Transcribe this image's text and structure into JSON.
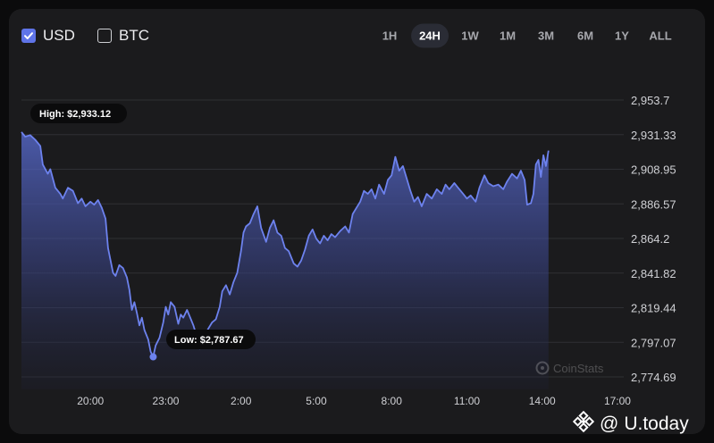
{
  "currency_toggle": [
    {
      "label": "USD",
      "checked": true
    },
    {
      "label": "BTC",
      "checked": false
    }
  ],
  "timeframes": [
    {
      "label": "1H",
      "selected": false
    },
    {
      "label": "24H",
      "selected": true
    },
    {
      "label": "1W",
      "selected": false
    },
    {
      "label": "1M",
      "selected": false
    },
    {
      "label": "3M",
      "selected": false
    },
    {
      "label": "6M",
      "selected": false
    },
    {
      "label": "1Y",
      "selected": false
    },
    {
      "label": "ALL",
      "selected": false
    }
  ],
  "colors": {
    "line": "#6d82ee",
    "accent": "#5f74e8",
    "background": "#1b1b1d"
  },
  "chart_watermark": "CoinStats",
  "page_watermark": {
    "icon": "binance-logo-icon",
    "at": "@",
    "text": "U.today"
  },
  "chart_data": {
    "type": "area",
    "title": "",
    "xlabel": "",
    "ylabel": "",
    "x_ticks": [
      "20:00",
      "23:00",
      "2:00",
      "5:00",
      "8:00",
      "11:00",
      "14:00",
      "17:00"
    ],
    "y_ticks": [
      "2,953.7",
      "2,931.33",
      "2,908.95",
      "2,886.57",
      "2,864.2",
      "2,841.82",
      "2,819.44",
      "2,797.07",
      "2,774.69"
    ],
    "ylim": [
      2774.69,
      2953.7
    ],
    "x_unit": "hours since the 20:00 tick",
    "xlim": [
      -2.75,
      21.25
    ],
    "grid": "horizontal",
    "high_label": "High: $2,933.12",
    "low_label": "Low: $2,787.67",
    "low_point": {
      "x": 2.5,
      "y": 2787.67
    },
    "series": [
      {
        "name": "",
        "points": [
          [
            -2.75,
            2933
          ],
          [
            -2.6,
            2930
          ],
          [
            -2.4,
            2931
          ],
          [
            -2.2,
            2928
          ],
          [
            -2.0,
            2924
          ],
          [
            -1.9,
            2912
          ],
          [
            -1.7,
            2906
          ],
          [
            -1.6,
            2909
          ],
          [
            -1.4,
            2897
          ],
          [
            -1.2,
            2893
          ],
          [
            -1.1,
            2890
          ],
          [
            -0.9,
            2897
          ],
          [
            -0.7,
            2895
          ],
          [
            -0.5,
            2887
          ],
          [
            -0.35,
            2890
          ],
          [
            -0.2,
            2885
          ],
          [
            0.0,
            2888
          ],
          [
            0.15,
            2886
          ],
          [
            0.3,
            2889
          ],
          [
            0.45,
            2884
          ],
          [
            0.6,
            2877
          ],
          [
            0.7,
            2858
          ],
          [
            0.8,
            2850
          ],
          [
            0.9,
            2842
          ],
          [
            1.0,
            2840
          ],
          [
            1.15,
            2847
          ],
          [
            1.3,
            2845
          ],
          [
            1.45,
            2839
          ],
          [
            1.55,
            2831
          ],
          [
            1.65,
            2818
          ],
          [
            1.75,
            2823
          ],
          [
            1.85,
            2816
          ],
          [
            1.95,
            2808
          ],
          [
            2.05,
            2813
          ],
          [
            2.15,
            2805
          ],
          [
            2.3,
            2799
          ],
          [
            2.4,
            2791
          ],
          [
            2.5,
            2787.67
          ],
          [
            2.6,
            2795
          ],
          [
            2.75,
            2800
          ],
          [
            2.9,
            2810
          ],
          [
            3.0,
            2820
          ],
          [
            3.1,
            2815
          ],
          [
            3.2,
            2823
          ],
          [
            3.35,
            2820
          ],
          [
            3.5,
            2809
          ],
          [
            3.6,
            2815
          ],
          [
            3.7,
            2813
          ],
          [
            3.85,
            2818
          ],
          [
            4.0,
            2812
          ],
          [
            4.1,
            2808
          ],
          [
            4.25,
            2800
          ],
          [
            4.35,
            2793
          ],
          [
            4.5,
            2800
          ],
          [
            4.7,
            2806
          ],
          [
            4.85,
            2810
          ],
          [
            5.0,
            2812
          ],
          [
            5.15,
            2820
          ],
          [
            5.25,
            2830
          ],
          [
            5.4,
            2834
          ],
          [
            5.55,
            2828
          ],
          [
            5.7,
            2836
          ],
          [
            5.85,
            2842
          ],
          [
            6.0,
            2856
          ],
          [
            6.1,
            2868
          ],
          [
            6.2,
            2872
          ],
          [
            6.35,
            2874
          ],
          [
            6.5,
            2880
          ],
          [
            6.65,
            2885
          ],
          [
            6.8,
            2871
          ],
          [
            7.0,
            2862
          ],
          [
            7.15,
            2871
          ],
          [
            7.3,
            2876
          ],
          [
            7.45,
            2868
          ],
          [
            7.6,
            2866
          ],
          [
            7.75,
            2858
          ],
          [
            7.9,
            2856
          ],
          [
            8.0,
            2852
          ],
          [
            8.1,
            2848
          ],
          [
            8.25,
            2846
          ],
          [
            8.4,
            2850
          ],
          [
            8.55,
            2857
          ],
          [
            8.7,
            2866
          ],
          [
            8.85,
            2870
          ],
          [
            9.0,
            2864
          ],
          [
            9.15,
            2861
          ],
          [
            9.3,
            2866
          ],
          [
            9.45,
            2863
          ],
          [
            9.6,
            2867
          ],
          [
            9.75,
            2865
          ],
          [
            9.95,
            2869
          ],
          [
            10.15,
            2872
          ],
          [
            10.3,
            2868
          ],
          [
            10.45,
            2880
          ],
          [
            10.6,
            2884
          ],
          [
            10.75,
            2888
          ],
          [
            10.9,
            2895
          ],
          [
            11.05,
            2893
          ],
          [
            11.2,
            2896
          ],
          [
            11.35,
            2890
          ],
          [
            11.5,
            2899
          ],
          [
            11.7,
            2893
          ],
          [
            11.85,
            2902
          ],
          [
            12.0,
            2905
          ],
          [
            12.15,
            2917
          ],
          [
            12.3,
            2908
          ],
          [
            12.45,
            2911
          ],
          [
            12.6,
            2903
          ],
          [
            12.75,
            2895
          ],
          [
            12.9,
            2888
          ],
          [
            13.05,
            2891
          ],
          [
            13.2,
            2885
          ],
          [
            13.4,
            2893
          ],
          [
            13.6,
            2890
          ],
          [
            13.8,
            2896
          ],
          [
            14.0,
            2893
          ],
          [
            14.15,
            2899
          ],
          [
            14.3,
            2896
          ],
          [
            14.5,
            2900
          ],
          [
            14.65,
            2897
          ],
          [
            14.85,
            2893
          ],
          [
            15.0,
            2890
          ],
          [
            15.15,
            2892
          ],
          [
            15.35,
            2888
          ],
          [
            15.5,
            2897
          ],
          [
            15.7,
            2905
          ],
          [
            15.85,
            2900
          ],
          [
            16.05,
            2898
          ],
          [
            16.25,
            2899
          ],
          [
            16.45,
            2896
          ],
          [
            16.6,
            2901
          ],
          [
            16.8,
            2906
          ],
          [
            17.0,
            2903
          ],
          [
            17.15,
            2908
          ],
          [
            17.3,
            2902
          ],
          [
            17.4,
            2886
          ],
          [
            17.55,
            2887
          ],
          [
            17.65,
            2893
          ],
          [
            17.75,
            2912
          ],
          [
            17.85,
            2915
          ],
          [
            17.95,
            2904
          ],
          [
            18.05,
            2918
          ],
          [
            18.15,
            2911
          ],
          [
            18.25,
            2921
          ]
        ]
      }
    ]
  }
}
